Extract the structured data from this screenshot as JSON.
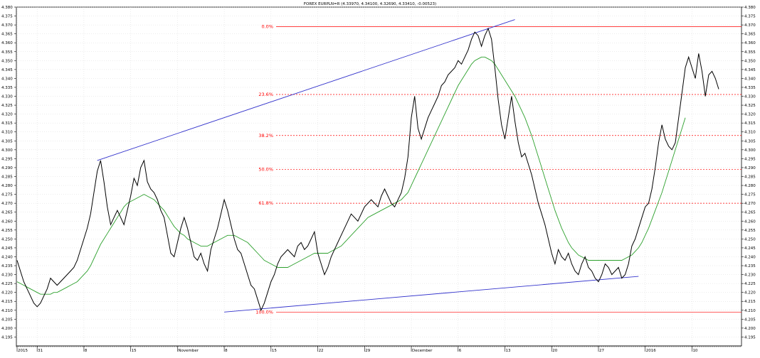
{
  "chart_data": {
    "type": "line",
    "title": "FOREX EURPLN=R (4.33970, 4.34100, 4.32690, 4.33410, -0.00523)",
    "ylim": [
      4.19,
      4.38
    ],
    "y_ticks": [
      "4.195",
      "4.200",
      "4.205",
      "4.210",
      "4.215",
      "4.220",
      "4.225",
      "4.230",
      "4.235",
      "4.240",
      "4.245",
      "4.250",
      "4.255",
      "4.260",
      "4.265",
      "4.270",
      "4.275",
      "4.280",
      "4.285",
      "4.290",
      "4.295",
      "4.300",
      "4.305",
      "4.310",
      "4.315",
      "4.320",
      "4.325",
      "4.330",
      "4.335",
      "4.340",
      "4.345",
      "4.350",
      "4.355",
      "4.360",
      "4.365",
      "4.370",
      "4.375",
      "4.380"
    ],
    "x_labels": [
      {
        "label": "2015",
        "idx": 0
      },
      {
        "label": "31",
        "idx": 6
      },
      {
        "label": "8",
        "idx": 20
      },
      {
        "label": "15",
        "idx": 34
      },
      {
        "label": "November",
        "idx": 48
      },
      {
        "label": "8",
        "idx": 62
      },
      {
        "label": "15",
        "idx": 76
      },
      {
        "label": "22",
        "idx": 90
      },
      {
        "label": "29",
        "idx": 104
      },
      {
        "label": "December",
        "idx": 118
      },
      {
        "label": "6",
        "idx": 132
      },
      {
        "label": "13",
        "idx": 146
      },
      {
        "label": "20",
        "idx": 160
      },
      {
        "label": "27",
        "idx": 174
      },
      {
        "label": "2016",
        "idx": 188
      },
      {
        "label": "10",
        "idx": 202
      }
    ],
    "series": [
      {
        "values": [
          4.238,
          4.232,
          4.226,
          4.222,
          4.218,
          4.214,
          4.212,
          4.214,
          4.218,
          4.222,
          4.228,
          4.226,
          4.224,
          4.226,
          4.228,
          4.23,
          4.232,
          4.234,
          4.238,
          4.244,
          4.25,
          4.256,
          4.264,
          4.276,
          4.288,
          4.294,
          4.282,
          4.268,
          4.258,
          4.262,
          4.266,
          4.262,
          4.258,
          4.266,
          4.274,
          4.284,
          4.28,
          4.29,
          4.294,
          4.282,
          4.278,
          4.276,
          4.272,
          4.266,
          4.262,
          4.252,
          4.242,
          4.24,
          4.248,
          4.256,
          4.262,
          4.256,
          4.248,
          4.24,
          4.238,
          4.242,
          4.236,
          4.232,
          4.244,
          4.25,
          4.256,
          4.264,
          4.272,
          4.266,
          4.258,
          4.25,
          4.244,
          4.242,
          4.236,
          4.23,
          4.224,
          4.222,
          4.216,
          4.21,
          4.214,
          4.22,
          4.226,
          4.23,
          4.236,
          4.24,
          4.242,
          4.244,
          4.242,
          4.24,
          4.246,
          4.248,
          4.244,
          4.246,
          4.25,
          4.254,
          4.242,
          4.236,
          4.23,
          4.234,
          4.24,
          4.244,
          4.248,
          4.252,
          4.256,
          4.26,
          4.264,
          4.262,
          4.26,
          4.264,
          4.268,
          4.27,
          4.272,
          4.27,
          4.268,
          4.274,
          4.278,
          4.274,
          4.27,
          4.268,
          4.272,
          4.276,
          4.284,
          4.296,
          4.318,
          4.33,
          4.312,
          4.306,
          4.312,
          4.318,
          4.322,
          4.326,
          4.33,
          4.336,
          4.338,
          4.342,
          4.344,
          4.346,
          4.35,
          4.348,
          4.352,
          4.356,
          4.362,
          4.366,
          4.364,
          4.358,
          4.364,
          4.368,
          4.362,
          4.346,
          4.328,
          4.314,
          4.306,
          4.318,
          4.33,
          4.316,
          4.304,
          4.296,
          4.298,
          4.292,
          4.286,
          4.278,
          4.27,
          4.264,
          4.258,
          4.25,
          4.242,
          4.236,
          4.244,
          4.24,
          4.238,
          4.242,
          4.236,
          4.232,
          4.23,
          4.236,
          4.24,
          4.234,
          4.232,
          4.228,
          4.226,
          4.23,
          4.236,
          4.234,
          4.23,
          4.232,
          4.234,
          4.228,
          4.23,
          4.236,
          4.246,
          4.25,
          4.256,
          4.262,
          4.268,
          4.27,
          4.278,
          4.29,
          4.304,
          4.314,
          4.306,
          4.302,
          4.3,
          4.304,
          4.318,
          4.332,
          4.346,
          4.352,
          4.346,
          4.34,
          4.354,
          4.344,
          4.33,
          4.342,
          4.344,
          4.34,
          4.334
        ]
      },
      {
        "values": [
          4.226,
          4.225,
          4.224,
          4.223,
          4.222,
          4.221,
          4.22,
          4.219,
          4.219,
          4.219,
          4.219,
          4.22,
          4.22,
          4.221,
          4.222,
          4.223,
          4.224,
          4.225,
          4.226,
          4.228,
          4.23,
          4.232,
          4.235,
          4.239,
          4.243,
          4.247,
          4.25,
          4.253,
          4.256,
          4.259,
          4.262,
          4.265,
          4.268,
          4.27,
          4.271,
          4.272,
          4.273,
          4.274,
          4.275,
          4.274,
          4.273,
          4.272,
          4.27,
          4.268,
          4.266,
          4.263,
          4.26,
          4.257,
          4.255,
          4.253,
          4.252,
          4.25,
          4.249,
          4.248,
          4.247,
          4.246,
          4.246,
          4.246,
          4.247,
          4.248,
          4.249,
          4.25,
          4.251,
          4.252,
          4.252,
          4.252,
          4.251,
          4.25,
          4.249,
          4.248,
          4.246,
          4.244,
          4.242,
          4.24,
          4.238,
          4.237,
          4.236,
          4.235,
          4.234,
          4.234,
          4.234,
          4.234,
          4.235,
          4.236,
          4.237,
          4.238,
          4.239,
          4.24,
          4.241,
          4.242,
          4.242,
          4.242,
          4.242,
          4.242,
          4.243,
          4.244,
          4.245,
          4.246,
          4.248,
          4.25,
          4.252,
          4.254,
          4.256,
          4.258,
          4.26,
          4.262,
          4.263,
          4.264,
          4.265,
          4.266,
          4.267,
          4.268,
          4.269,
          4.27,
          4.271,
          4.272,
          4.274,
          4.276,
          4.28,
          4.284,
          4.288,
          4.292,
          4.296,
          4.3,
          4.304,
          4.308,
          4.312,
          4.316,
          4.32,
          4.324,
          4.328,
          4.332,
          4.336,
          4.339,
          4.342,
          4.345,
          4.348,
          4.35,
          4.351,
          4.352,
          4.352,
          4.351,
          4.35,
          4.348,
          4.345,
          4.342,
          4.339,
          4.336,
          4.333,
          4.33,
          4.326,
          4.322,
          4.318,
          4.313,
          4.308,
          4.302,
          4.296,
          4.29,
          4.284,
          4.278,
          4.272,
          4.266,
          4.261,
          4.256,
          4.252,
          4.248,
          4.245,
          4.243,
          4.241,
          4.24,
          4.239,
          4.238,
          4.238,
          4.238,
          4.238,
          4.238,
          4.238,
          4.238,
          4.238,
          4.238,
          4.238,
          4.238,
          4.239,
          4.24,
          4.241,
          4.243,
          4.245,
          4.248,
          4.252,
          4.256,
          4.261,
          4.266,
          4.271,
          4.276,
          4.282,
          4.288,
          4.294,
          4.3,
          4.306,
          4.312,
          4.318
        ]
      }
    ],
    "fib_levels": [
      {
        "label": "0.0%",
        "value": 4.369,
        "style": "solid"
      },
      {
        "label": "23.6%",
        "value": 4.331,
        "style": "dashed"
      },
      {
        "label": "38.2%",
        "value": 4.308,
        "style": "dashed"
      },
      {
        "label": "50.0%",
        "value": 4.289,
        "style": "dashed"
      },
      {
        "label": "61.8%",
        "value": 4.27,
        "style": "dashed"
      },
      {
        "label": "100.0%",
        "value": 4.209,
        "style": "solid"
      }
    ],
    "trend_lines": [
      {
        "from": {
          "idx": 24,
          "value": 4.294
        },
        "to": {
          "idx": 149,
          "value": 4.373
        }
      },
      {
        "from": {
          "idx": 62,
          "value": 4.209
        },
        "to": {
          "idx": 186,
          "value": 4.229
        }
      }
    ],
    "colors": {
      "price": "#000000",
      "moving_average": "#2ca02c",
      "fibonacci": "#ff0000",
      "trend": "#3333cc",
      "grid": "#d8d8d8"
    },
    "grid": true
  }
}
